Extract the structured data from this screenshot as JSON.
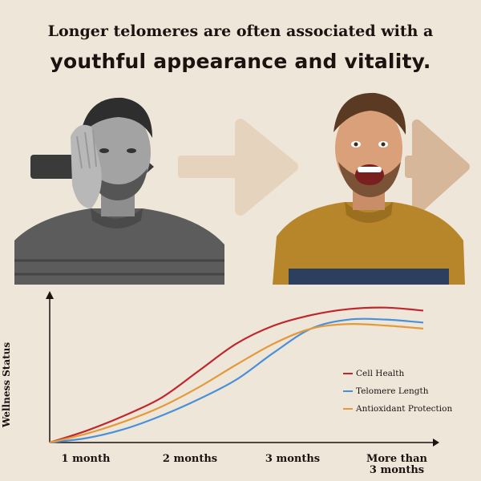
{
  "header": {
    "headline": "Longer telomeres are often associated with a",
    "subhead": "youthful appearance and vitality."
  },
  "colors": {
    "background": "#efe6da",
    "cell_health": "#c0272d",
    "telomere_length": "#4a90d9",
    "antioxidant": "#e39a3b",
    "arrow_light": "#e6d3bd",
    "arrow_dark": "#d6b79a",
    "arrow_gray": "#3a3a3a"
  },
  "icons": [
    "arrow-right-icon",
    "tired-man-photo",
    "happy-man-photo"
  ],
  "chart_data": {
    "type": "line",
    "ylabel": "Wellness Status",
    "xlabel": "",
    "categories": [
      "1 month",
      "2 months",
      "3 months",
      "More than 3 months"
    ],
    "x_tick_lines": [
      [
        "1 month"
      ],
      [
        "2 months"
      ],
      [
        "3 months"
      ],
      [
        "More than",
        "3 months"
      ]
    ],
    "x": [
      0,
      1,
      2,
      3,
      4,
      5,
      6,
      7,
      8,
      9,
      10
    ],
    "ylim": [
      0,
      100
    ],
    "grid": false,
    "legend_placement": "right",
    "series": [
      {
        "name": "Cell Health",
        "color": "#c0272d",
        "values": [
          0,
          8,
          18,
          30,
          48,
          66,
          78,
          85,
          89,
          90,
          88
        ]
      },
      {
        "name": "Telomere Length",
        "color": "#4a90d9",
        "values": [
          0,
          3,
          9,
          18,
          29,
          42,
          60,
          76,
          82,
          82,
          80
        ]
      },
      {
        "name": "Antioxidant Protection",
        "color": "#e39a3b",
        "values": [
          0,
          6,
          14,
          24,
          37,
          52,
          66,
          76,
          79,
          78,
          76
        ]
      }
    ]
  }
}
